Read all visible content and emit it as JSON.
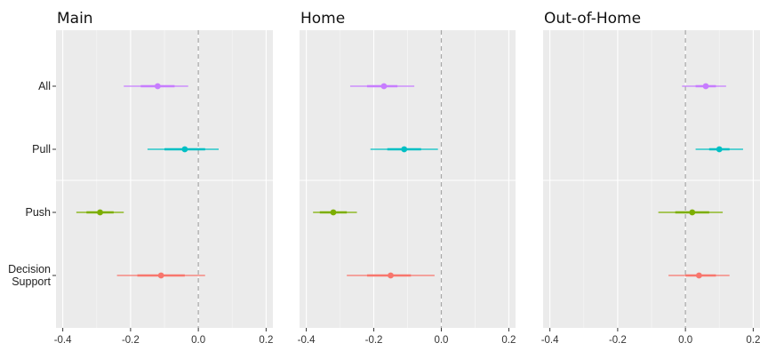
{
  "chart_data": {
    "type": "forest",
    "title": "",
    "xlabel": "",
    "ylabel": "",
    "xlim": [
      -0.42,
      0.22
    ],
    "x_ticks": [
      -0.4,
      -0.2,
      0.0,
      0.2
    ],
    "x_tick_labels": [
      "-0.4",
      "-0.2",
      "0.0",
      "0.2"
    ],
    "reference_line": 0.0,
    "grid": true,
    "legend": "none",
    "categories": [
      {
        "key": "all",
        "lines": [
          "All"
        ],
        "color": "#C77CFF"
      },
      {
        "key": "pull",
        "lines": [
          "Pull"
        ],
        "color": "#00BFC4"
      },
      {
        "key": "push",
        "lines": [
          "Push"
        ],
        "color": "#7CAE00"
      },
      {
        "key": "ds",
        "lines": [
          "Decision",
          "Support"
        ],
        "color": "#F8766D"
      }
    ],
    "panels": [
      {
        "title": "Main",
        "rows": [
          {
            "category": "all",
            "estimate": -0.12,
            "inner": [
              -0.17,
              -0.07
            ],
            "outer": [
              -0.22,
              -0.03
            ]
          },
          {
            "category": "pull",
            "estimate": -0.04,
            "inner": [
              -0.1,
              0.02
            ],
            "outer": [
              -0.15,
              0.06
            ]
          },
          {
            "category": "push",
            "estimate": -0.29,
            "inner": [
              -0.33,
              -0.25
            ],
            "outer": [
              -0.36,
              -0.22
            ]
          },
          {
            "category": "ds",
            "estimate": -0.11,
            "inner": [
              -0.18,
              -0.04
            ],
            "outer": [
              -0.24,
              0.02
            ]
          }
        ]
      },
      {
        "title": "Home",
        "rows": [
          {
            "category": "all",
            "estimate": -0.17,
            "inner": [
              -0.22,
              -0.13
            ],
            "outer": [
              -0.27,
              -0.08
            ]
          },
          {
            "category": "pull",
            "estimate": -0.11,
            "inner": [
              -0.16,
              -0.06
            ],
            "outer": [
              -0.21,
              -0.01
            ]
          },
          {
            "category": "push",
            "estimate": -0.32,
            "inner": [
              -0.36,
              -0.28
            ],
            "outer": [
              -0.38,
              -0.25
            ]
          },
          {
            "category": "ds",
            "estimate": -0.15,
            "inner": [
              -0.22,
              -0.09
            ],
            "outer": [
              -0.28,
              -0.02
            ]
          }
        ]
      },
      {
        "title": "Out-of-Home",
        "rows": [
          {
            "category": "all",
            "estimate": 0.06,
            "inner": [
              0.03,
              0.09
            ],
            "outer": [
              -0.01,
              0.12
            ]
          },
          {
            "category": "pull",
            "estimate": 0.1,
            "inner": [
              0.07,
              0.13
            ],
            "outer": [
              0.03,
              0.17
            ]
          },
          {
            "category": "push",
            "estimate": 0.02,
            "inner": [
              -0.03,
              0.07
            ],
            "outer": [
              -0.08,
              0.11
            ]
          },
          {
            "category": "ds",
            "estimate": 0.04,
            "inner": [
              0.0,
              0.09
            ],
            "outer": [
              -0.05,
              0.13
            ]
          }
        ]
      }
    ]
  }
}
